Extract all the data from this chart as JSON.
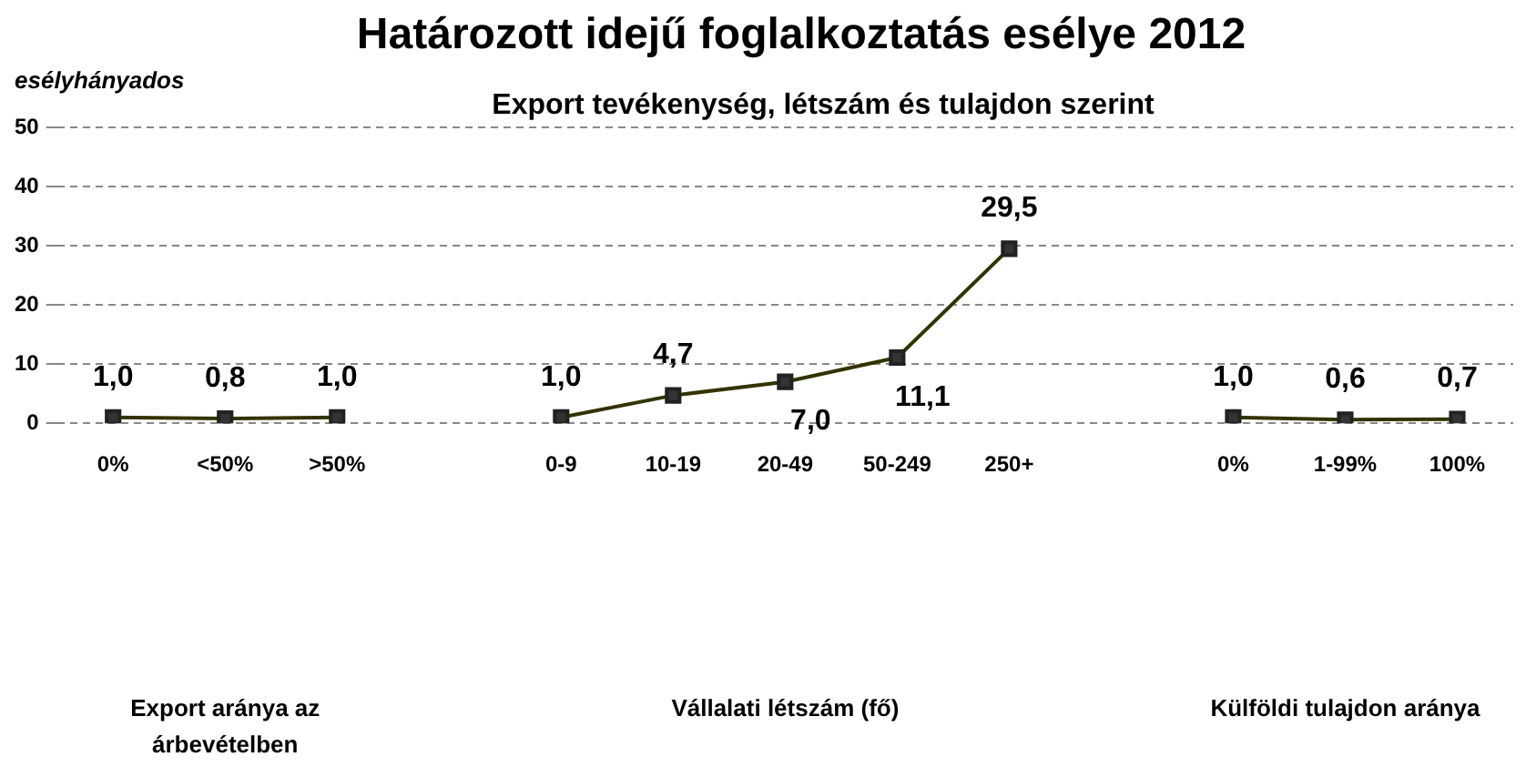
{
  "chart_data": {
    "type": "line",
    "title": "Határozott idejű foglalkoztatás esélye 2012",
    "subtitle": "Export tevékenység, létszám és tulajdon szerint",
    "ylabel": "esélyhányados",
    "categories": [
      "0%",
      "<50%",
      ">50%",
      null,
      "0-9",
      "10-19",
      "20-49",
      "50-249",
      "250+",
      null,
      "0%",
      "1-99%",
      "100%"
    ],
    "series": [
      {
        "color": "#333300",
        "values": [
          1.0,
          0.8,
          1.0,
          null,
          1.0,
          4.7,
          7.0,
          11.1,
          29.5,
          null,
          1.0,
          0.6,
          0.7
        ],
        "value_labels": [
          "1,0",
          "0,8",
          "1,0",
          null,
          "1,0",
          "4,7",
          "7,0",
          "11,1",
          "29,5",
          null,
          "1,0",
          "0,6",
          "0,7"
        ]
      }
    ],
    "annotations": [
      "Export aránya az árbevételben",
      "Vállalati létszám (fő)",
      "Külföldi tulajdon aránya"
    ],
    "ylim": [
      0,
      50
    ],
    "yticks": [
      0,
      10,
      20,
      30,
      40,
      50
    ],
    "grid": "y",
    "legend": false,
    "marker": "square",
    "line_style": "solid"
  }
}
